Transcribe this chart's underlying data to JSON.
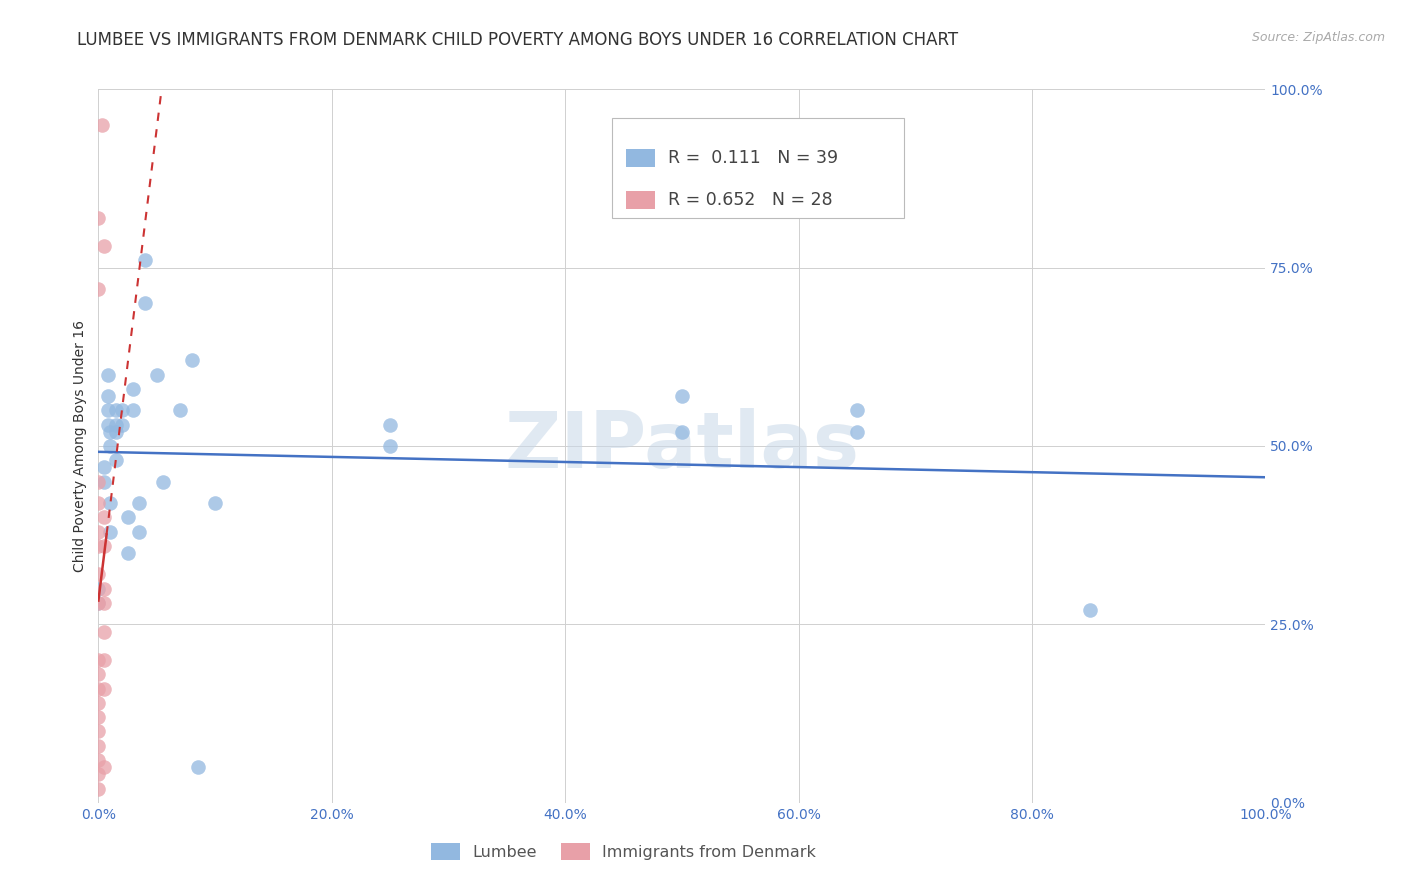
{
  "title": "LUMBEE VS IMMIGRANTS FROM DENMARK CHILD POVERTY AMONG BOYS UNDER 16 CORRELATION CHART",
  "source": "Source: ZipAtlas.com",
  "ylabel": "Child Poverty Among Boys Under 16",
  "watermark": "ZIPatlas",
  "xlim": [
    0.0,
    1.0
  ],
  "ylim": [
    0.0,
    1.0
  ],
  "xticks": [
    0.0,
    0.2,
    0.4,
    0.6,
    0.8,
    1.0
  ],
  "yticks": [
    0.0,
    0.25,
    0.5,
    0.75,
    1.0
  ],
  "xticklabels": [
    "0.0%",
    "20.0%",
    "40.0%",
    "60.0%",
    "80.0%",
    "100.0%"
  ],
  "yticklabels": [
    "0.0%",
    "25.0%",
    "50.0%",
    "75.0%",
    "100.0%"
  ],
  "lumbee_R": "0.111",
  "lumbee_N": "39",
  "denmark_R": "0.652",
  "denmark_N": "28",
  "lumbee_color": "#92b8e0",
  "denmark_color": "#e8a0a8",
  "trend_lumbee_color": "#4472c4",
  "trend_denmark_color": "#cc3333",
  "lumbee_points": [
    [
      0.0,
      0.28
    ],
    [
      0.0,
      0.3
    ],
    [
      0.005,
      0.47
    ],
    [
      0.005,
      0.45
    ],
    [
      0.008,
      0.6
    ],
    [
      0.008,
      0.57
    ],
    [
      0.008,
      0.55
    ],
    [
      0.008,
      0.53
    ],
    [
      0.01,
      0.52
    ],
    [
      0.01,
      0.5
    ],
    [
      0.01,
      0.42
    ],
    [
      0.01,
      0.38
    ],
    [
      0.015,
      0.55
    ],
    [
      0.015,
      0.53
    ],
    [
      0.015,
      0.52
    ],
    [
      0.015,
      0.48
    ],
    [
      0.02,
      0.55
    ],
    [
      0.02,
      0.53
    ],
    [
      0.025,
      0.4
    ],
    [
      0.025,
      0.35
    ],
    [
      0.03,
      0.58
    ],
    [
      0.03,
      0.55
    ],
    [
      0.035,
      0.42
    ],
    [
      0.035,
      0.38
    ],
    [
      0.04,
      0.76
    ],
    [
      0.04,
      0.7
    ],
    [
      0.05,
      0.6
    ],
    [
      0.055,
      0.45
    ],
    [
      0.07,
      0.55
    ],
    [
      0.08,
      0.62
    ],
    [
      0.085,
      0.05
    ],
    [
      0.1,
      0.42
    ],
    [
      0.25,
      0.53
    ],
    [
      0.25,
      0.5
    ],
    [
      0.5,
      0.57
    ],
    [
      0.5,
      0.52
    ],
    [
      0.65,
      0.52
    ],
    [
      0.65,
      0.55
    ],
    [
      0.85,
      0.27
    ]
  ],
  "denmark_points": [
    [
      0.0,
      0.82
    ],
    [
      0.0,
      0.72
    ],
    [
      0.0,
      0.45
    ],
    [
      0.0,
      0.42
    ],
    [
      0.0,
      0.38
    ],
    [
      0.0,
      0.36
    ],
    [
      0.0,
      0.32
    ],
    [
      0.0,
      0.28
    ],
    [
      0.0,
      0.2
    ],
    [
      0.0,
      0.18
    ],
    [
      0.0,
      0.16
    ],
    [
      0.0,
      0.14
    ],
    [
      0.0,
      0.12
    ],
    [
      0.0,
      0.1
    ],
    [
      0.0,
      0.08
    ],
    [
      0.0,
      0.06
    ],
    [
      0.0,
      0.04
    ],
    [
      0.0,
      0.02
    ],
    [
      0.003,
      0.95
    ],
    [
      0.005,
      0.78
    ],
    [
      0.005,
      0.4
    ],
    [
      0.005,
      0.36
    ],
    [
      0.005,
      0.3
    ],
    [
      0.005,
      0.28
    ],
    [
      0.005,
      0.24
    ],
    [
      0.005,
      0.2
    ],
    [
      0.005,
      0.16
    ],
    [
      0.005,
      0.05
    ]
  ],
  "background_color": "#ffffff",
  "grid_color": "#d0d0d0",
  "title_fontsize": 12,
  "axis_label_fontsize": 10,
  "tick_fontsize": 10,
  "legend_fontsize": 12
}
